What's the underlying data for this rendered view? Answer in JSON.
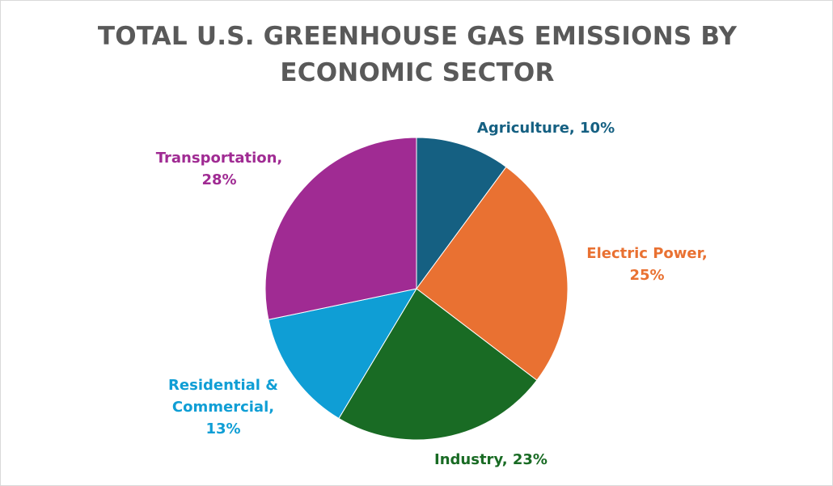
{
  "chart_data": {
    "type": "pie",
    "title_lines": [
      "TOTAL U.S. GREENHOUSE GAS EMISSIONS BY",
      "ECONOMIC SECTOR"
    ],
    "slices": [
      {
        "name": "Agriculture",
        "value": 10,
        "color": "#156082",
        "label_lines": [
          "Agriculture, 10%"
        ]
      },
      {
        "name": "Electric Power",
        "value": 25,
        "color": "#E97132",
        "label_lines": [
          "Electric Power,",
          "25%"
        ]
      },
      {
        "name": "Industry",
        "value": 23,
        "color": "#196B24",
        "label_lines": [
          "Industry, 23%"
        ]
      },
      {
        "name": "Residential & Commercial",
        "value": 13,
        "color": "#0F9ED5",
        "label_lines": [
          "Residential &",
          "Commercial,",
          "13%"
        ]
      },
      {
        "name": "Transportation",
        "value": 28,
        "color": "#A02B93",
        "label_lines": [
          "Transportation,",
          "28%"
        ]
      }
    ],
    "unit": "%",
    "legend": "none",
    "label_position": "outside"
  }
}
